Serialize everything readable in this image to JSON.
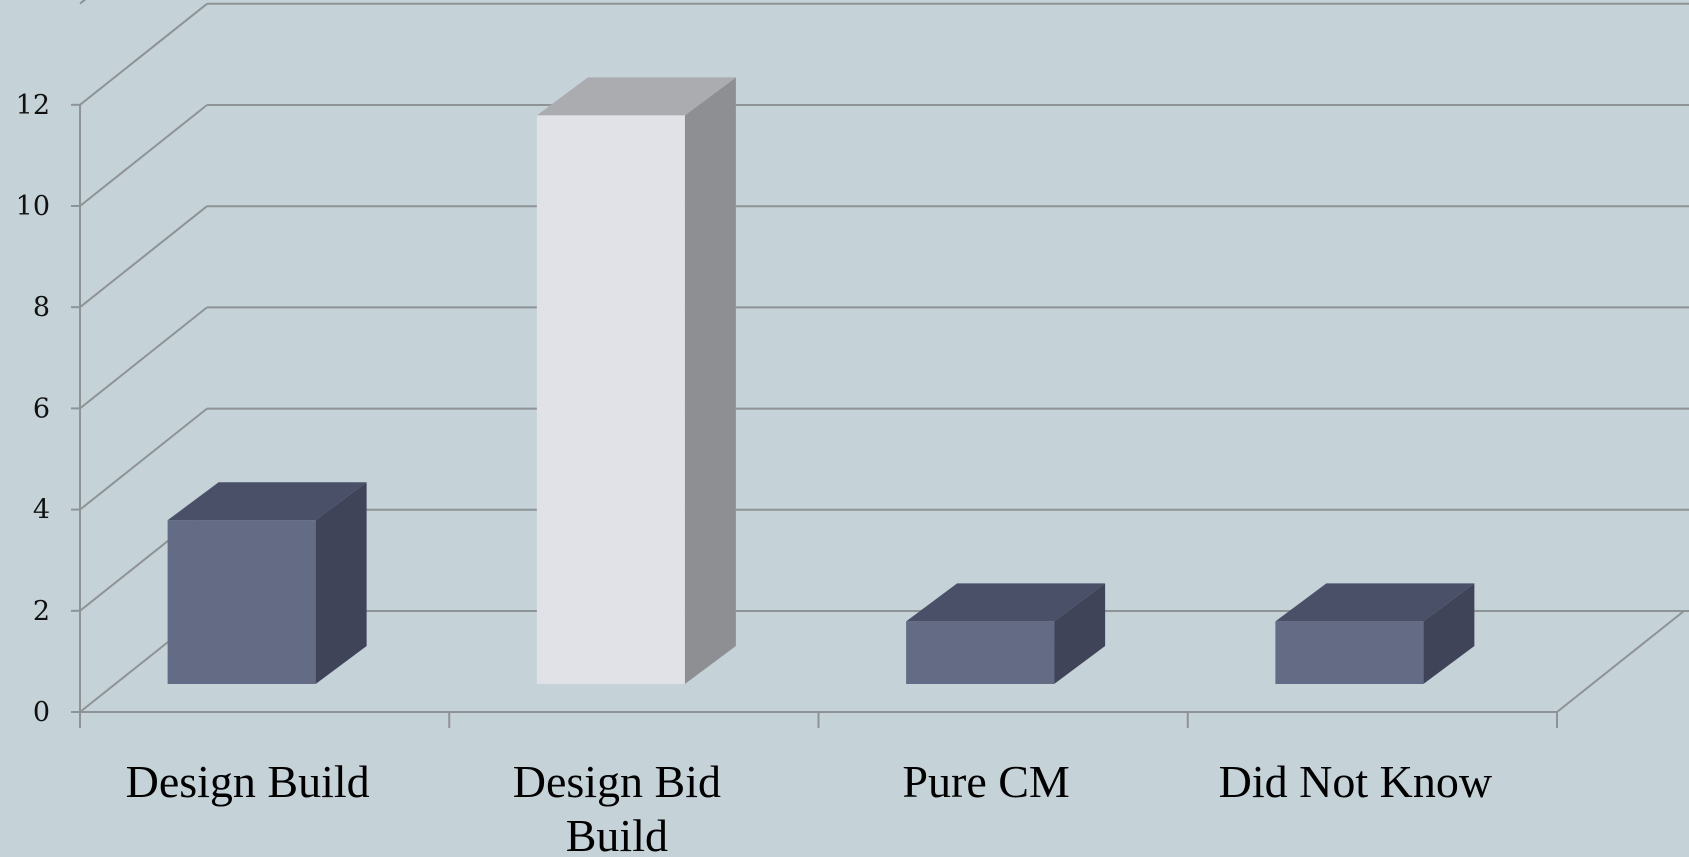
{
  "chart_data": {
    "type": "bar",
    "categories": [
      "Design Build",
      "Design Bid Build",
      "Pure CM",
      "Did Not Know"
    ],
    "category_lines": [
      [
        "Design Build"
      ],
      [
        "Design Bid",
        "Build"
      ],
      [
        "Pure CM"
      ],
      [
        "Did Not Know"
      ]
    ],
    "values": [
      3,
      11,
      1,
      1
    ],
    "highlight_index": 1,
    "ylim": [
      0,
      12
    ],
    "yticks": [
      0,
      2,
      4,
      6,
      8,
      10,
      12
    ],
    "grid": true,
    "legend": "none",
    "style": "3d-column",
    "colors": {
      "background": "#c5d2d8",
      "grid": "#8e9396",
      "bar_front": "#646b85",
      "bar_top": "#4a5068",
      "bar_side": "#404458",
      "highlight_front": "#e0e2e7",
      "highlight_top": "#abacb0",
      "highlight_side": "#8d8f93"
    }
  }
}
